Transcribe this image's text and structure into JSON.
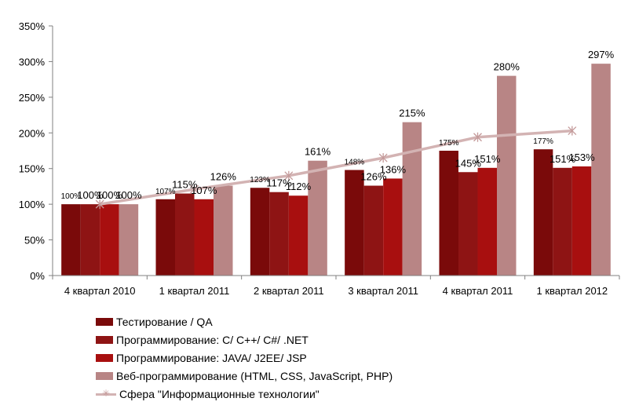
{
  "chart_data": {
    "type": "bar",
    "categories": [
      "4 квартал 2010",
      "1 квартал 2011",
      "2 квартал 2011",
      "3 квартал 2011",
      "4 квартал 2011",
      "1 квартал 2012"
    ],
    "ylim": [
      0,
      350
    ],
    "yticks": [
      "0%",
      "50%",
      "100%",
      "150%",
      "200%",
      "250%",
      "300%",
      "350%"
    ],
    "grid": false,
    "legend_position": "bottom",
    "series": [
      {
        "name": "Тестирование / QA",
        "color": "#7a0a0a",
        "values": [
          100,
          107,
          123,
          148,
          175,
          177
        ],
        "labels": [
          "100%",
          "107%",
          "123%",
          "148%",
          "175%",
          "177%"
        ]
      },
      {
        "name": "Программирование: С/ С++/ С#/ .NET",
        "color": "#8e1414",
        "values": [
          100,
          115,
          117,
          126,
          145,
          151
        ],
        "labels": [
          "100%",
          "115%",
          "117%",
          "126%",
          "145%",
          "151%"
        ]
      },
      {
        "name": "Программирование: JAVA/ J2EE/ JSP",
        "color": "#a80f0f",
        "values": [
          100,
          107,
          112,
          136,
          151,
          153
        ],
        "labels": [
          "100%",
          "107%",
          "112%",
          "136%",
          "151%",
          "153%"
        ]
      },
      {
        "name": "Веб-программирование (HTML, CSS, JavaScript, PHP)",
        "color": "#b88585",
        "values": [
          100,
          126,
          161,
          215,
          280,
          297
        ],
        "labels": [
          "100%",
          "126%",
          "161%",
          "215%",
          "280%",
          "297%"
        ]
      }
    ],
    "line_series": {
      "name": "Сфера \"Информационные технологии\"",
      "type": "line",
      "color": "#d3b3b3",
      "marker": "×",
      "values": [
        100,
        121,
        140,
        165,
        194,
        203
      ]
    }
  }
}
